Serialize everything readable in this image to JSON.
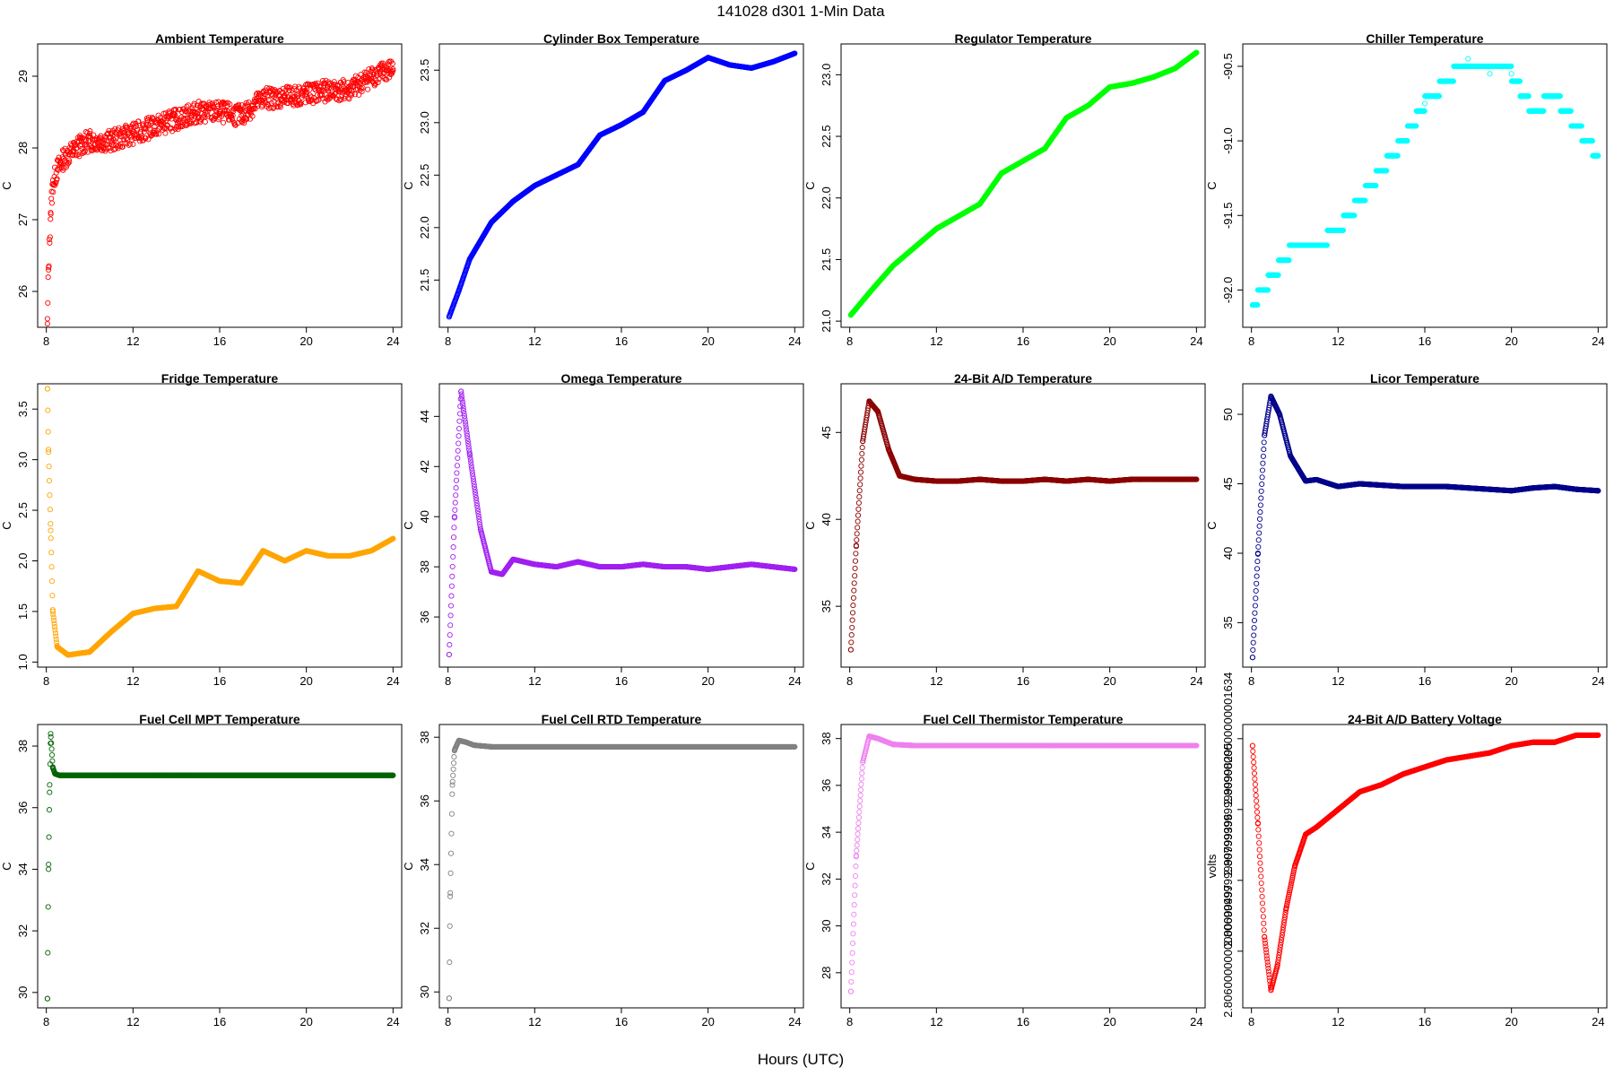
{
  "figure": {
    "title": "141028   d301   1-Min Data",
    "xlabel": "Hours (UTC)"
  },
  "chart_data": [
    {
      "type": "scatter",
      "title": "Ambient Temperature",
      "ylabel": "C",
      "color": "#ff0000",
      "xlim": [
        7.6,
        24.4
      ],
      "ylim": [
        25.5,
        29.45
      ],
      "xticks": [
        8,
        12,
        16,
        20,
        24
      ],
      "yticks": [
        26,
        27,
        28,
        29
      ],
      "series": [
        {
          "name": "Ambient Temperature",
          "noise": 0.15,
          "x": [
            8.05,
            8.1,
            8.2,
            8.3,
            8.5,
            8.8,
            9.2,
            9.6,
            10,
            11,
            12,
            13,
            14,
            15,
            16,
            17,
            18,
            19,
            20,
            21,
            22,
            23,
            24
          ],
          "y": [
            25.55,
            26.3,
            27.1,
            27.5,
            27.7,
            27.85,
            27.95,
            28.05,
            28.1,
            28.1,
            28.2,
            28.3,
            28.4,
            28.5,
            28.5,
            28.45,
            28.7,
            28.7,
            28.75,
            28.8,
            28.8,
            29.0,
            29.1
          ]
        }
      ]
    },
    {
      "type": "scatter",
      "title": "Cylinder Box Temperature",
      "ylabel": "C",
      "color": "#0000ff",
      "xlim": [
        7.6,
        24.4
      ],
      "ylim": [
        21.05,
        23.75
      ],
      "xticks": [
        8,
        12,
        16,
        20,
        24
      ],
      "yticks": [
        21.5,
        22.0,
        22.5,
        23.0,
        23.5
      ],
      "series": [
        {
          "name": "Cylinder Box Temperature",
          "noise": 0,
          "x": [
            8.05,
            8.5,
            9,
            10,
            11,
            12,
            13,
            14,
            15,
            16,
            17,
            18,
            19,
            20,
            21,
            22,
            23,
            24
          ],
          "y": [
            21.15,
            21.4,
            21.7,
            22.05,
            22.25,
            22.4,
            22.5,
            22.6,
            22.88,
            22.98,
            23.1,
            23.4,
            23.5,
            23.62,
            23.55,
            23.52,
            23.58,
            23.66
          ]
        }
      ]
    },
    {
      "type": "scatter",
      "title": "Regulator Temperature",
      "ylabel": "C",
      "color": "#00ff00",
      "xlim": [
        7.6,
        24.4
      ],
      "ylim": [
        20.95,
        23.25
      ],
      "xticks": [
        8,
        12,
        16,
        20,
        24
      ],
      "yticks": [
        21.0,
        21.5,
        22.0,
        22.5,
        23.0
      ],
      "series": [
        {
          "name": "Regulator Temperature",
          "noise": 0,
          "x": [
            8.05,
            9,
            10,
            11,
            12,
            13,
            14,
            15,
            16,
            17,
            18,
            19,
            20,
            21,
            22,
            23,
            24
          ],
          "y": [
            21.05,
            21.25,
            21.45,
            21.6,
            21.75,
            21.85,
            21.95,
            22.2,
            22.3,
            22.4,
            22.65,
            22.75,
            22.9,
            22.93,
            22.98,
            23.05,
            23.18
          ]
        }
      ]
    },
    {
      "type": "scatter",
      "title": "Chiller Temperature",
      "ylabel": "C",
      "color": "#00ffff",
      "xlim": [
        7.6,
        24.4
      ],
      "ylim": [
        -92.25,
        -90.35
      ],
      "xticks": [
        8,
        12,
        16,
        20,
        24
      ],
      "yticks": [
        -92.0,
        -91.5,
        -91.0,
        -90.5
      ],
      "series": [
        {
          "name": "Chiller Temperature",
          "noise": 0,
          "step": 0.1,
          "x": [
            8.05,
            9,
            10,
            11,
            12,
            13,
            14,
            15,
            16,
            17,
            18,
            19,
            20,
            21,
            22,
            23,
            24
          ],
          "y": [
            -92.1,
            -91.9,
            -91.7,
            -91.7,
            -91.6,
            -91.4,
            -91.2,
            -91.0,
            -90.75,
            -90.6,
            -90.45,
            -90.55,
            -90.55,
            -90.8,
            -90.7,
            -90.9,
            -91.1
          ]
        }
      ]
    },
    {
      "type": "scatter",
      "title": "Fridge Temperature",
      "ylabel": "C",
      "color": "#ffa500",
      "xlim": [
        7.6,
        24.4
      ],
      "ylim": [
        0.95,
        3.75
      ],
      "xticks": [
        8,
        12,
        16,
        20,
        24
      ],
      "yticks": [
        1.0,
        1.5,
        2.0,
        2.5,
        3.0,
        3.5
      ],
      "series": [
        {
          "name": "Fridge Temperature",
          "noise": 0,
          "x": [
            8.05,
            8.1,
            8.2,
            8.3,
            8.5,
            9,
            10,
            11,
            12,
            13,
            14,
            15,
            16,
            17,
            18,
            19,
            20,
            21,
            22,
            23,
            24
          ],
          "y": [
            3.7,
            3.1,
            2.3,
            1.5,
            1.15,
            1.07,
            1.1,
            1.3,
            1.48,
            1.53,
            1.55,
            1.9,
            1.8,
            1.78,
            2.1,
            2.0,
            2.1,
            2.05,
            2.05,
            2.1,
            2.22
          ]
        }
      ]
    },
    {
      "type": "scatter",
      "title": "Omega Temperature",
      "ylabel": "C",
      "color": "#a020f0",
      "xlim": [
        7.6,
        24.4
      ],
      "ylim": [
        34.0,
        45.3
      ],
      "xticks": [
        8,
        12,
        16,
        20,
        24
      ],
      "yticks": [
        36,
        38,
        40,
        42,
        44
      ],
      "series": [
        {
          "name": "Omega Temperature",
          "noise": 0,
          "x": [
            8.05,
            8.3,
            8.6,
            9,
            9.5,
            10,
            10.5,
            11,
            12,
            13,
            14,
            15,
            16,
            17,
            18,
            19,
            20,
            21,
            22,
            23,
            24
          ],
          "y": [
            34.5,
            40.0,
            45.0,
            42.5,
            39.5,
            37.8,
            37.7,
            38.3,
            38.1,
            38.0,
            38.2,
            38.0,
            38.0,
            38.1,
            38.0,
            38.0,
            37.9,
            38.0,
            38.1,
            38.0,
            37.9
          ]
        }
      ]
    },
    {
      "type": "scatter",
      "title": "24-Bit A/D Temperature",
      "ylabel": "C",
      "color": "#8b0000",
      "xlim": [
        7.6,
        24.4
      ],
      "ylim": [
        31.5,
        47.8
      ],
      "xticks": [
        8,
        12,
        16,
        20,
        24
      ],
      "yticks": [
        35,
        40,
        45
      ],
      "series": [
        {
          "name": "24-Bit A/D Temperature",
          "noise": 0,
          "x": [
            8.05,
            8.3,
            8.6,
            8.9,
            9.3,
            9.8,
            10.3,
            11,
            12,
            13,
            14,
            15,
            16,
            17,
            18,
            19,
            20,
            21,
            22,
            23,
            24
          ],
          "y": [
            32.5,
            38.5,
            44.5,
            46.8,
            46.2,
            44.0,
            42.5,
            42.3,
            42.2,
            42.2,
            42.3,
            42.2,
            42.2,
            42.3,
            42.2,
            42.3,
            42.2,
            42.3,
            42.3,
            42.3,
            42.3
          ]
        }
      ]
    },
    {
      "type": "scatter",
      "title": "Licor Temperature",
      "ylabel": "C",
      "color": "#00008b",
      "xlim": [
        7.6,
        24.4
      ],
      "ylim": [
        31.8,
        52.2
      ],
      "xticks": [
        8,
        12,
        16,
        20,
        24
      ],
      "yticks": [
        35,
        40,
        45,
        50
      ],
      "series": [
        {
          "name": "Licor Temperature",
          "noise": 0,
          "x": [
            8.05,
            8.3,
            8.6,
            8.9,
            9.3,
            9.8,
            10.5,
            11,
            12,
            13,
            14,
            15,
            16,
            17,
            18,
            19,
            20,
            21,
            22,
            23,
            24
          ],
          "y": [
            32.5,
            40.0,
            48.5,
            51.3,
            50.0,
            47.0,
            45.2,
            45.3,
            44.8,
            45.0,
            44.9,
            44.8,
            44.8,
            44.8,
            44.7,
            44.6,
            44.5,
            44.7,
            44.8,
            44.6,
            44.5
          ]
        }
      ]
    },
    {
      "type": "scatter",
      "title": "Fuel Cell MPT Temperature",
      "ylabel": "C",
      "color": "#006400",
      "xlim": [
        7.6,
        24.4
      ],
      "ylim": [
        29.5,
        38.7
      ],
      "xticks": [
        8,
        12,
        16,
        20,
        24
      ],
      "yticks": [
        30,
        32,
        34,
        36,
        38
      ],
      "series": [
        {
          "name": "Fuel Cell MPT Temperature",
          "noise": 0,
          "x": [
            8.05,
            8.1,
            8.15,
            8.2,
            8.3,
            8.4,
            8.6,
            9,
            10,
            12,
            14,
            16,
            18,
            20,
            22,
            24
          ],
          "y": [
            29.8,
            34.0,
            36.5,
            38.4,
            37.3,
            37.1,
            37.05,
            37.05,
            37.05,
            37.05,
            37.05,
            37.05,
            37.05,
            37.05,
            37.05,
            37.05
          ]
        }
      ]
    },
    {
      "type": "scatter",
      "title": "Fuel Cell RTD Temperature",
      "ylabel": "C",
      "color": "#808080",
      "xlim": [
        7.6,
        24.4
      ],
      "ylim": [
        29.5,
        38.4
      ],
      "xticks": [
        8,
        12,
        16,
        20,
        24
      ],
      "yticks": [
        30,
        32,
        34,
        36,
        38
      ],
      "series": [
        {
          "name": "Fuel Cell RTD Temperature",
          "noise": 0,
          "x": [
            8.05,
            8.1,
            8.2,
            8.3,
            8.5,
            8.8,
            9.2,
            10,
            12,
            14,
            16,
            18,
            20,
            22,
            24
          ],
          "y": [
            29.8,
            33.0,
            36.5,
            37.6,
            37.9,
            37.85,
            37.75,
            37.7,
            37.7,
            37.7,
            37.7,
            37.7,
            37.7,
            37.7,
            37.7
          ]
        }
      ]
    },
    {
      "type": "scatter",
      "title": "Fuel Cell Thermistor Temperature",
      "ylabel": "C",
      "color": "#ee82ee",
      "xlim": [
        7.6,
        24.4
      ],
      "ylim": [
        26.5,
        38.6
      ],
      "xticks": [
        8,
        12,
        16,
        20,
        24
      ],
      "yticks": [
        28,
        30,
        32,
        34,
        36,
        38
      ],
      "series": [
        {
          "name": "Fuel Cell Thermistor Temperature",
          "noise": 0,
          "x": [
            8.05,
            8.3,
            8.6,
            8.9,
            9.3,
            10,
            11,
            12,
            14,
            16,
            18,
            20,
            22,
            24
          ],
          "y": [
            27.2,
            33.0,
            37.0,
            38.1,
            38.0,
            37.75,
            37.7,
            37.7,
            37.7,
            37.7,
            37.7,
            37.7,
            37.7,
            37.7
          ]
        }
      ]
    },
    {
      "type": "scatter",
      "title": "24-Bit A/D Battery Voltage",
      "ylabel": "volts",
      "color": "#ff0000",
      "xlim": [
        7.6,
        24.4
      ],
      "ylim": [
        2.8052,
        2.8092
      ],
      "xticks": [
        8,
        12,
        16,
        20,
        24
      ],
      "yticks": [
        2.806,
        2.807,
        2.808,
        2.809
      ],
      "series": [
        {
          "name": "24-Bit A/D Battery Voltage",
          "noise": 0,
          "x": [
            8.05,
            8.3,
            8.6,
            8.9,
            9.2,
            9.6,
            10,
            10.5,
            11,
            12,
            13,
            14,
            15,
            16,
            17,
            18,
            19,
            20,
            21,
            22,
            23,
            24
          ],
          "y": [
            2.8089,
            2.8078,
            2.8062,
            2.80545,
            2.8058,
            2.8066,
            2.8072,
            2.80765,
            2.80775,
            2.808,
            2.80825,
            2.80835,
            2.8085,
            2.8086,
            2.8087,
            2.80875,
            2.8088,
            2.8089,
            2.80895,
            2.80895,
            2.80905,
            2.80905
          ]
        }
      ]
    }
  ]
}
